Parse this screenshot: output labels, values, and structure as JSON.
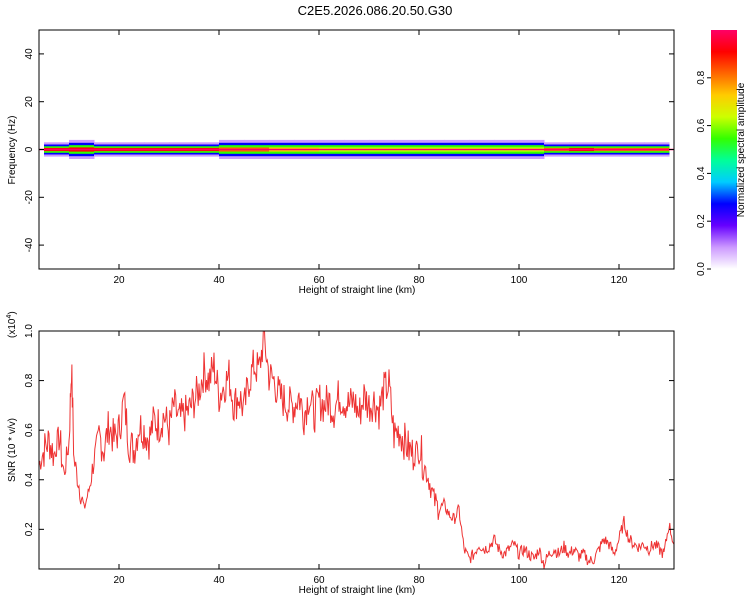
{
  "figure": {
    "title": "C2E5.2026.086.20.50.G30"
  },
  "colorbar": {
    "label": "Normalized spectral amplitude",
    "range": [
      0,
      1
    ],
    "ticks": [
      "0.0",
      "0.2",
      "0.4",
      "0.6",
      "0.8"
    ],
    "tick_values": [
      0,
      0.2,
      0.4,
      0.6,
      0.8
    ],
    "colors": [
      "#ffffff",
      "#cc99ff",
      "#6600ff",
      "#0000ff",
      "#00ccff",
      "#00ff99",
      "#33ff00",
      "#ccff00",
      "#ffcc00",
      "#ff6600",
      "#ff0000",
      "#ff0066"
    ]
  },
  "chart_data": [
    {
      "type": "heatmap",
      "title": "C2E5.2026.086.20.50.G30",
      "xlabel": "Height of straight line (km)",
      "ylabel": "Frequency (Hz)",
      "xlim": [
        4,
        131
      ],
      "ylim": [
        -50,
        50
      ],
      "x_ticks": [
        "20",
        "40",
        "60",
        "80",
        "100",
        "120"
      ],
      "x_tick_values": [
        20,
        40,
        60,
        80,
        100,
        120
      ],
      "y_ticks": [
        "-40",
        "-20",
        "0",
        "20",
        "40"
      ],
      "y_tick_values": [
        -40,
        -20,
        0,
        20,
        40
      ],
      "description_band_center_hz": 0,
      "band": {
        "x": [
          5,
          10,
          15,
          20,
          25,
          30,
          35,
          40,
          45,
          50,
          55,
          60,
          65,
          70,
          75,
          80,
          85,
          90,
          95,
          100,
          105,
          110,
          115,
          120,
          125,
          130
        ],
        "half_width_hz": [
          3,
          4,
          3,
          3,
          3,
          3,
          3,
          4,
          4,
          4,
          4,
          4,
          4,
          4,
          4,
          4,
          4,
          4,
          4,
          4,
          3,
          3,
          3,
          3,
          3,
          3
        ],
        "peak_amplitude": [
          0.95,
          0.9,
          0.95,
          0.9,
          0.95,
          0.95,
          0.9,
          0.85,
          0.8,
          0.7,
          0.7,
          0.65,
          0.65,
          0.65,
          0.6,
          0.6,
          0.65,
          0.6,
          0.65,
          0.6,
          0.85,
          0.9,
          0.85,
          0.85,
          0.85,
          0.8
        ]
      }
    },
    {
      "type": "line",
      "xlabel": "Height of straight line (km)",
      "ylabel": "SNR (10 * v/v)",
      "y_exponent_label": "(x10",
      "y_exponent_power": "4",
      "y_exponent_close": ")",
      "xlim": [
        4,
        131
      ],
      "ylim": [
        0.04,
        1.0
      ],
      "x_ticks": [
        "20",
        "40",
        "60",
        "80",
        "100",
        "120"
      ],
      "x_tick_values": [
        20,
        40,
        60,
        80,
        100,
        120
      ],
      "y_ticks": [
        "0.2",
        "0.4",
        "0.6",
        "0.8",
        "1.0"
      ],
      "y_tick_values": [
        0.2,
        0.4,
        0.6,
        0.8,
        1.0
      ],
      "series": [
        {
          "name": "SNR",
          "color": "#ee3333",
          "x": [
            4,
            5,
            6,
            7,
            8,
            9,
            10,
            10.5,
            11,
            12,
            13,
            14,
            15,
            16,
            17,
            18,
            19,
            20,
            21,
            22,
            23,
            24,
            25,
            26,
            27,
            28,
            29,
            30,
            31,
            32,
            33,
            34,
            35,
            36,
            37,
            38,
            39,
            40,
            41,
            42,
            43,
            44,
            45,
            46,
            47,
            48,
            49,
            50,
            51,
            52,
            53,
            54,
            55,
            56,
            57,
            58,
            59,
            60,
            61,
            62,
            63,
            64,
            65,
            66,
            67,
            68,
            69,
            70,
            71,
            72,
            73,
            74,
            75,
            76,
            77,
            78,
            79,
            80,
            81,
            82,
            83,
            84,
            85,
            86,
            87,
            88,
            89,
            90,
            91,
            92,
            93,
            94,
            95,
            96,
            97,
            98,
            99,
            100,
            101,
            102,
            103,
            104,
            105,
            106,
            107,
            108,
            109,
            110,
            111,
            112,
            113,
            114,
            115,
            116,
            117,
            118,
            119,
            120,
            121,
            122,
            123,
            124,
            125,
            126,
            127,
            128,
            129,
            130,
            131
          ],
          "y": [
            0.46,
            0.52,
            0.56,
            0.5,
            0.58,
            0.42,
            0.55,
            0.86,
            0.48,
            0.38,
            0.28,
            0.36,
            0.48,
            0.58,
            0.52,
            0.62,
            0.56,
            0.6,
            0.72,
            0.55,
            0.52,
            0.62,
            0.6,
            0.56,
            0.64,
            0.62,
            0.66,
            0.6,
            0.7,
            0.64,
            0.66,
            0.68,
            0.72,
            0.76,
            0.84,
            0.8,
            0.86,
            0.74,
            0.78,
            0.82,
            0.7,
            0.74,
            0.68,
            0.8,
            0.86,
            0.84,
            0.98,
            0.82,
            0.8,
            0.74,
            0.72,
            0.7,
            0.7,
            0.74,
            0.66,
            0.74,
            0.66,
            0.72,
            0.7,
            0.72,
            0.68,
            0.74,
            0.72,
            0.7,
            0.72,
            0.66,
            0.74,
            0.7,
            0.72,
            0.68,
            0.76,
            0.78,
            0.58,
            0.6,
            0.56,
            0.52,
            0.5,
            0.54,
            0.46,
            0.4,
            0.32,
            0.28,
            0.3,
            0.26,
            0.24,
            0.28,
            0.12,
            0.08,
            0.1,
            0.14,
            0.12,
            0.13,
            0.16,
            0.12,
            0.1,
            0.12,
            0.14,
            0.1,
            0.12,
            0.1,
            0.08,
            0.12,
            0.06,
            0.1,
            0.12,
            0.1,
            0.13,
            0.1,
            0.12,
            0.09,
            0.1,
            0.07,
            0.08,
            0.12,
            0.16,
            0.14,
            0.1,
            0.16,
            0.23,
            0.16,
            0.14,
            0.13,
            0.14,
            0.12,
            0.14,
            0.12,
            0.1,
            0.22,
            0.14
          ]
        }
      ]
    }
  ]
}
